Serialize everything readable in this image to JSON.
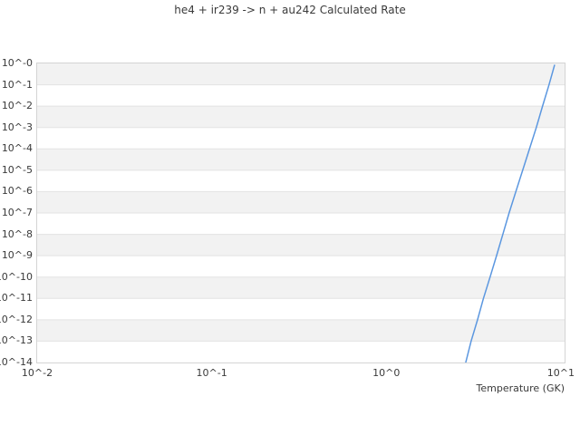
{
  "chart_data": {
    "type": "line",
    "title": "he4 + ir239 -> n + au242 Calculated Rate",
    "xlabel": "Temperature (GK)",
    "ylabel": "",
    "x_scale": "log",
    "y_scale": "log",
    "xlim": [
      0.01,
      10.5
    ],
    "ylim": [
      1e-14,
      1
    ],
    "x_tick_labels": [
      "10^-2",
      "10^-1",
      "10^0",
      "10^1"
    ],
    "x_tick_values": [
      0.01,
      0.1,
      1,
      10
    ],
    "y_tick_labels": [
      "10^-0",
      "10^-1",
      "10^-2",
      "10^-3",
      "10^-4",
      "10^-5",
      "10^-6",
      "10^-7",
      "10^-8",
      "10^-9",
      "10^-10",
      "10^-11",
      "10^-12",
      "10^-13",
      "10^-14"
    ],
    "y_tick_values": [
      1,
      0.1,
      0.01,
      0.001,
      0.0001,
      1e-05,
      1e-06,
      1e-07,
      1e-08,
      1e-09,
      1e-10,
      1e-11,
      1e-12,
      1e-13,
      1e-14
    ],
    "grid": "alternating-horizontal-bands",
    "legend": "none",
    "band_color": "#f2f2f2",
    "gridline_color": "#e3e3e3",
    "border_color": "#d4d4d4",
    "text_color": "#3a3a3a",
    "series": [
      {
        "name": "calculated-rate",
        "color": "#5b97e0",
        "x": [
          2.85,
          3.06,
          3.33,
          3.6,
          3.93,
          4.28,
          4.65,
          5.05,
          5.52,
          6.04,
          6.61,
          7.23,
          7.85,
          8.55,
          9.19
        ],
        "y": [
          1e-14,
          1e-13,
          1e-12,
          1e-11,
          1e-10,
          1e-09,
          1e-08,
          1e-07,
          1e-06,
          1e-05,
          0.0001,
          0.001,
          0.01,
          0.1,
          0.82
        ]
      }
    ]
  }
}
